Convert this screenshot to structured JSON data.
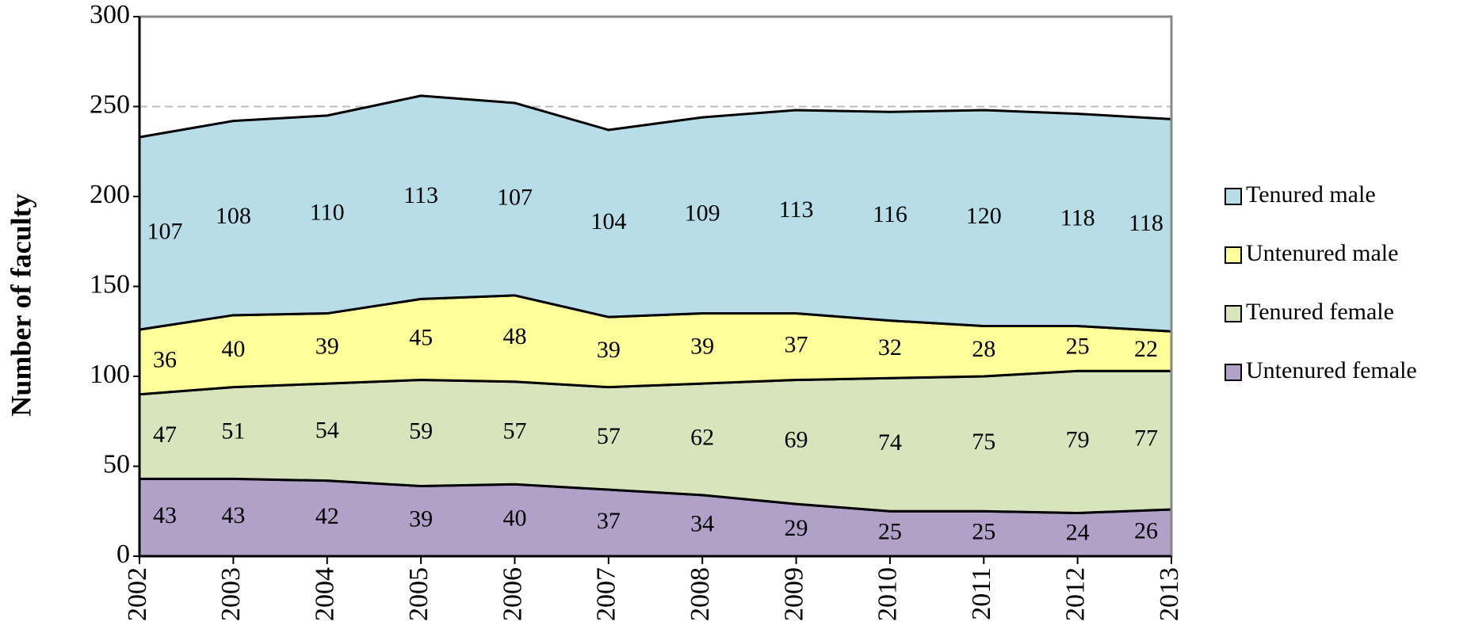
{
  "chart_data": {
    "type": "stacked_area",
    "y_label": "Number of faculty",
    "x": [
      2002,
      2003,
      2004,
      2005,
      2006,
      2007,
      2008,
      2009,
      2010,
      2011,
      2012,
      2013
    ],
    "xlim": [
      2002,
      2013
    ],
    "ylim": [
      0,
      300
    ],
    "yticks": [
      0,
      50,
      100,
      150,
      200,
      250,
      300
    ],
    "grid": true,
    "legend": "right",
    "series": [
      {
        "name": "Untenured female",
        "color": "#b1a0c7",
        "values": [
          43,
          43,
          42,
          39,
          40,
          37,
          34,
          29,
          25,
          25,
          24,
          26
        ]
      },
      {
        "name": "Tenured female",
        "color": "#d8e4bc",
        "values": [
          47,
          51,
          54,
          59,
          57,
          57,
          62,
          69,
          74,
          75,
          79,
          77
        ]
      },
      {
        "name": "Untenured male",
        "color": "#ffff99",
        "values": [
          36,
          40,
          39,
          45,
          48,
          39,
          39,
          37,
          32,
          28,
          25,
          22
        ]
      },
      {
        "name": "Tenured male",
        "color": "#b7dee8",
        "values": [
          107,
          108,
          110,
          113,
          107,
          104,
          109,
          113,
          116,
          120,
          118,
          118
        ]
      }
    ]
  }
}
